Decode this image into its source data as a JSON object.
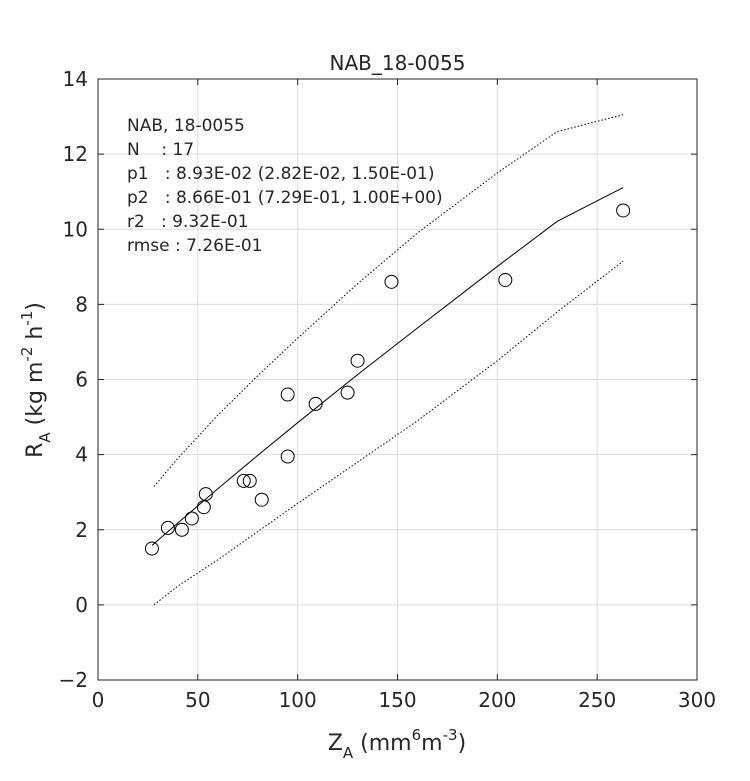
{
  "chart_data": {
    "type": "scatter",
    "title": "NAB_18-0055",
    "xlabel": {
      "main": "Z",
      "sub": "A",
      "unit_open": " (mm",
      "sup1": "6",
      "mid": "m",
      "sup2": "-3",
      "close": ")"
    },
    "ylabel": {
      "main": "R",
      "sub": "A",
      "unit_open": " (kg m",
      "sup1": "-2",
      "mid": " h",
      "sup2": "-1",
      "close": ")"
    },
    "xlim": [
      0,
      300
    ],
    "ylim": [
      -2,
      14
    ],
    "xticks": [
      0,
      50,
      100,
      150,
      200,
      250,
      300
    ],
    "yticks": [
      -2,
      0,
      2,
      4,
      6,
      8,
      10,
      12,
      14
    ],
    "grid": true,
    "annotation": [
      "NAB, 18-0055",
      "N    : 17",
      "p1   : 8.93E-02 (2.82E-02, 1.50E-01)",
      "p2   : 8.66E-01 (7.29E-01, 1.00E+00)",
      "r2   : 9.32E-01",
      "rmse : 7.26E-01"
    ],
    "points": [
      {
        "x": 27,
        "y": 1.5
      },
      {
        "x": 35,
        "y": 2.05
      },
      {
        "x": 42,
        "y": 2.0
      },
      {
        "x": 47,
        "y": 2.3
      },
      {
        "x": 53,
        "y": 2.6
      },
      {
        "x": 54,
        "y": 2.95
      },
      {
        "x": 73,
        "y": 3.3
      },
      {
        "x": 76,
        "y": 3.3
      },
      {
        "x": 82,
        "y": 2.8
      },
      {
        "x": 95,
        "y": 3.95
      },
      {
        "x": 95,
        "y": 5.6
      },
      {
        "x": 109,
        "y": 5.35
      },
      {
        "x": 125,
        "y": 5.65
      },
      {
        "x": 130,
        "y": 6.5
      },
      {
        "x": 147,
        "y": 8.6
      },
      {
        "x": 204,
        "y": 8.65
      },
      {
        "x": 263,
        "y": 10.5
      }
    ],
    "fit_line": {
      "style": "solid",
      "x": [
        27,
        40,
        60,
        80,
        100,
        130,
        160,
        200,
        230,
        263
      ],
      "y": [
        1.58,
        2.18,
        3.09,
        3.98,
        4.85,
        6.13,
        7.37,
        9.01,
        10.21,
        11.11
      ]
    },
    "upper_bound": {
      "style": "dotted",
      "x": [
        28,
        40,
        60,
        80,
        100,
        130,
        160,
        200,
        230,
        263
      ],
      "y": [
        3.15,
        3.9,
        5.05,
        6.1,
        7.1,
        8.55,
        9.9,
        11.5,
        12.6,
        13.05
      ]
    },
    "lower_bound": {
      "style": "dotted",
      "x": [
        28,
        40,
        60,
        80,
        100,
        130,
        160,
        200,
        230,
        263
      ],
      "y": [
        0.0,
        0.5,
        1.2,
        1.95,
        2.7,
        3.8,
        4.9,
        6.5,
        7.8,
        9.15
      ]
    }
  }
}
